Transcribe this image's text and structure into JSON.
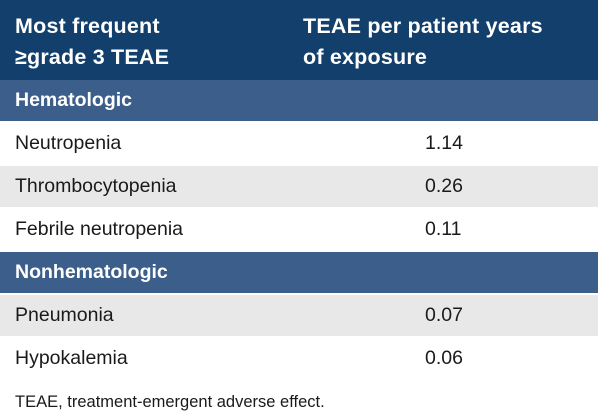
{
  "table": {
    "header": {
      "col1_line1": "Most frequent",
      "col1_line2": "≥grade 3 TEAE",
      "col2_line1": "TEAE per patient years",
      "col2_line2": "of exposure"
    },
    "groups": [
      {
        "label": "Hematologic",
        "rows": [
          {
            "name": "Neutropenia",
            "value": "1.14"
          },
          {
            "name": "Thrombocytopenia",
            "value": "0.26"
          },
          {
            "name": "Febrile neutropenia",
            "value": "0.11"
          }
        ]
      },
      {
        "label": "Nonhematologic",
        "rows": [
          {
            "name": "Pneumonia",
            "value": "0.07"
          },
          {
            "name": "Hypokalemia",
            "value": "0.06"
          }
        ]
      }
    ],
    "footnote": "TEAE, treatment-emergent adverse effect."
  },
  "colors": {
    "header_bg": "#123f6b",
    "group_bg": "#3b5f8a",
    "row_shade": "#e8e8e8",
    "row_light": "#ffffff"
  }
}
